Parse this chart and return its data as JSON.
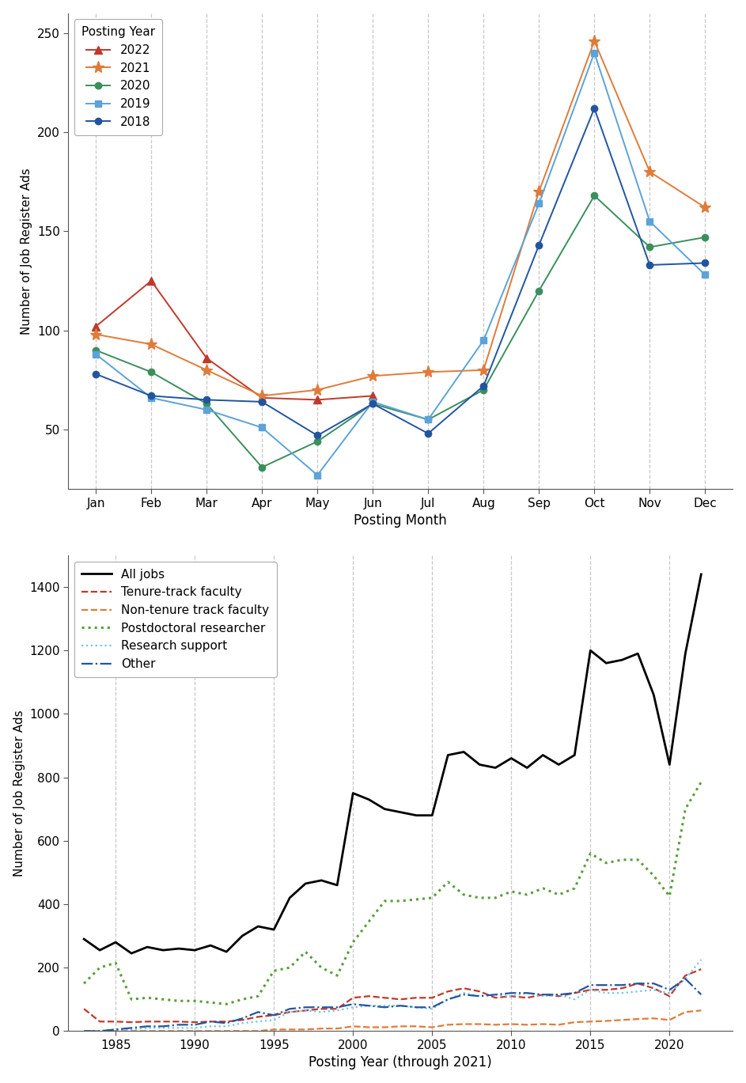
{
  "top_plot": {
    "xlabel": "Posting Month",
    "ylabel": "Number of Job Register Ads",
    "months": [
      "Jan",
      "Feb",
      "Mar",
      "Apr",
      "May",
      "Jun",
      "Jul",
      "Aug",
      "Sep",
      "Oct",
      "Nov",
      "Dec"
    ],
    "ylim": [
      20,
      260
    ],
    "yticks": [
      50,
      100,
      150,
      200,
      250
    ],
    "legend_title": "Posting Year",
    "series": {
      "2022": {
        "color": "#c0392b",
        "marker": "^",
        "linestyle": "-",
        "data": [
          102,
          125,
          86,
          66,
          65,
          67,
          null,
          null,
          null,
          null,
          null,
          null
        ]
      },
      "2021": {
        "color": "#e07b39",
        "marker": "*",
        "linestyle": "-",
        "data": [
          98,
          93,
          80,
          67,
          70,
          77,
          79,
          80,
          170,
          246,
          180,
          162
        ]
      },
      "2020": {
        "color": "#3a8f5c",
        "marker": "o",
        "linestyle": "-",
        "data": [
          90,
          79,
          63,
          31,
          44,
          63,
          55,
          70,
          120,
          168,
          142,
          147
        ]
      },
      "2019": {
        "color": "#5ba3d9",
        "marker": "s",
        "linestyle": "-",
        "data": [
          88,
          66,
          60,
          51,
          27,
          64,
          55,
          95,
          164,
          240,
          155,
          128
        ]
      },
      "2018": {
        "color": "#2155a0",
        "marker": "o",
        "linestyle": "-",
        "data": [
          78,
          67,
          65,
          64,
          47,
          63,
          48,
          72,
          143,
          212,
          133,
          134
        ]
      }
    },
    "legend_order": [
      "2022",
      "2021",
      "2020",
      "2019",
      "2018"
    ]
  },
  "bottom_plot": {
    "xlabel": "Posting Year (through 2021)",
    "ylabel": "Number of Job Register Ads",
    "xlim": [
      1982,
      2024
    ],
    "ylim": [
      0,
      1500
    ],
    "yticks": [
      0,
      200,
      400,
      600,
      800,
      1000,
      1200,
      1400
    ],
    "xticks": [
      1985,
      1990,
      1995,
      2000,
      2005,
      2010,
      2015,
      2020
    ],
    "series": {
      "All jobs": {
        "color": "#000000",
        "linestyle": "-",
        "linewidth": 2.0,
        "data_years": [
          1983,
          1984,
          1985,
          1986,
          1987,
          1988,
          1989,
          1990,
          1991,
          1992,
          1993,
          1994,
          1995,
          1996,
          1997,
          1998,
          1999,
          2000,
          2001,
          2002,
          2003,
          2004,
          2005,
          2006,
          2007,
          2008,
          2009,
          2010,
          2011,
          2012,
          2013,
          2014,
          2015,
          2016,
          2017,
          2018,
          2019,
          2020,
          2021,
          2022
        ],
        "data_values": [
          290,
          255,
          280,
          245,
          265,
          255,
          260,
          255,
          270,
          250,
          300,
          330,
          320,
          420,
          465,
          475,
          460,
          750,
          730,
          700,
          690,
          680,
          680,
          870,
          880,
          840,
          830,
          860,
          830,
          870,
          840,
          870,
          1200,
          1160,
          1170,
          1190,
          1060,
          840,
          1190,
          1440
        ]
      },
      "Tenure-track faculty": {
        "color": "#c0392b",
        "linestyle": "--",
        "linewidth": 1.6,
        "data_years": [
          1983,
          1984,
          1985,
          1986,
          1987,
          1988,
          1989,
          1990,
          1991,
          1992,
          1993,
          1994,
          1995,
          1996,
          1997,
          1998,
          1999,
          2000,
          2001,
          2002,
          2003,
          2004,
          2005,
          2006,
          2007,
          2008,
          2009,
          2010,
          2011,
          2012,
          2013,
          2014,
          2015,
          2016,
          2017,
          2018,
          2019,
          2020,
          2021,
          2022
        ],
        "data_values": [
          70,
          30,
          30,
          28,
          30,
          30,
          30,
          28,
          30,
          30,
          35,
          45,
          50,
          60,
          65,
          70,
          70,
          105,
          110,
          105,
          100,
          105,
          105,
          125,
          135,
          125,
          105,
          110,
          105,
          115,
          110,
          120,
          130,
          130,
          135,
          150,
          135,
          110,
          175,
          195
        ]
      },
      "Non-tenure track faculty": {
        "color": "#e07b39",
        "linestyle": "--",
        "linewidth": 1.6,
        "data_years": [
          1983,
          1984,
          1985,
          1986,
          1987,
          1988,
          1989,
          1990,
          1991,
          1992,
          1993,
          1994,
          1995,
          1996,
          1997,
          1998,
          1999,
          2000,
          2001,
          2002,
          2003,
          2004,
          2005,
          2006,
          2007,
          2008,
          2009,
          2010,
          2011,
          2012,
          2013,
          2014,
          2015,
          2016,
          2017,
          2018,
          2019,
          2020,
          2021,
          2022
        ],
        "data_values": [
          0,
          0,
          0,
          0,
          0,
          0,
          0,
          0,
          0,
          0,
          0,
          0,
          5,
          5,
          5,
          8,
          8,
          15,
          12,
          12,
          15,
          15,
          12,
          20,
          22,
          22,
          20,
          22,
          20,
          22,
          20,
          28,
          30,
          32,
          35,
          38,
          40,
          35,
          60,
          65
        ]
      },
      "Postdoctoral researcher": {
        "color": "#5a9e3a",
        "linestyle": ":",
        "linewidth": 2.2,
        "data_years": [
          1983,
          1984,
          1985,
          1986,
          1987,
          1988,
          1989,
          1990,
          1991,
          1992,
          1993,
          1994,
          1995,
          1996,
          1997,
          1998,
          1999,
          2000,
          2001,
          2002,
          2003,
          2004,
          2005,
          2006,
          2007,
          2008,
          2009,
          2010,
          2011,
          2012,
          2013,
          2014,
          2015,
          2016,
          2017,
          2018,
          2019,
          2020,
          2021,
          2022
        ],
        "data_values": [
          150,
          200,
          215,
          100,
          105,
          100,
          95,
          95,
          90,
          85,
          100,
          110,
          190,
          200,
          250,
          200,
          175,
          280,
          345,
          410,
          410,
          415,
          420,
          470,
          430,
          420,
          420,
          440,
          430,
          450,
          430,
          450,
          560,
          530,
          540,
          540,
          490,
          425,
          700,
          785
        ]
      },
      "Research support": {
        "color": "#72c4e8",
        "linestyle": ":",
        "linewidth": 1.6,
        "data_years": [
          1983,
          1984,
          1985,
          1986,
          1987,
          1988,
          1989,
          1990,
          1991,
          1992,
          1993,
          1994,
          1995,
          1996,
          1997,
          1998,
          1999,
          2000,
          2001,
          2002,
          2003,
          2004,
          2005,
          2006,
          2007,
          2008,
          2009,
          2010,
          2011,
          2012,
          2013,
          2014,
          2015,
          2016,
          2017,
          2018,
          2019,
          2020,
          2021,
          2022
        ],
        "data_values": [
          0,
          0,
          5,
          5,
          10,
          10,
          10,
          10,
          15,
          15,
          25,
          30,
          35,
          60,
          65,
          60,
          65,
          75,
          80,
          80,
          80,
          75,
          70,
          100,
          120,
          110,
          115,
          110,
          120,
          110,
          115,
          100,
          130,
          120,
          120,
          125,
          130,
          120,
          165,
          225
        ]
      },
      "Other": {
        "color": "#2155a0",
        "linestyle": "-.",
        "linewidth": 1.6,
        "data_years": [
          1983,
          1984,
          1985,
          1986,
          1987,
          1988,
          1989,
          1990,
          1991,
          1992,
          1993,
          1994,
          1995,
          1996,
          1997,
          1998,
          1999,
          2000,
          2001,
          2002,
          2003,
          2004,
          2005,
          2006,
          2007,
          2008,
          2009,
          2010,
          2011,
          2012,
          2013,
          2014,
          2015,
          2016,
          2017,
          2018,
          2019,
          2020,
          2021,
          2022
        ],
        "data_values": [
          0,
          0,
          5,
          10,
          15,
          15,
          20,
          20,
          30,
          25,
          40,
          60,
          50,
          70,
          75,
          75,
          75,
          85,
          80,
          75,
          80,
          75,
          75,
          100,
          115,
          110,
          115,
          120,
          120,
          115,
          115,
          120,
          145,
          145,
          145,
          150,
          150,
          130,
          165,
          115
        ]
      }
    },
    "legend_order": [
      "All jobs",
      "Tenure-track faculty",
      "Non-tenure track faculty",
      "Postdoctoral researcher",
      "Research support",
      "Other"
    ]
  },
  "figure_bg": "#ffffff",
  "axes_bg": "#ffffff",
  "grid_color": "#c8c8c8",
  "spine_color": "#555555"
}
